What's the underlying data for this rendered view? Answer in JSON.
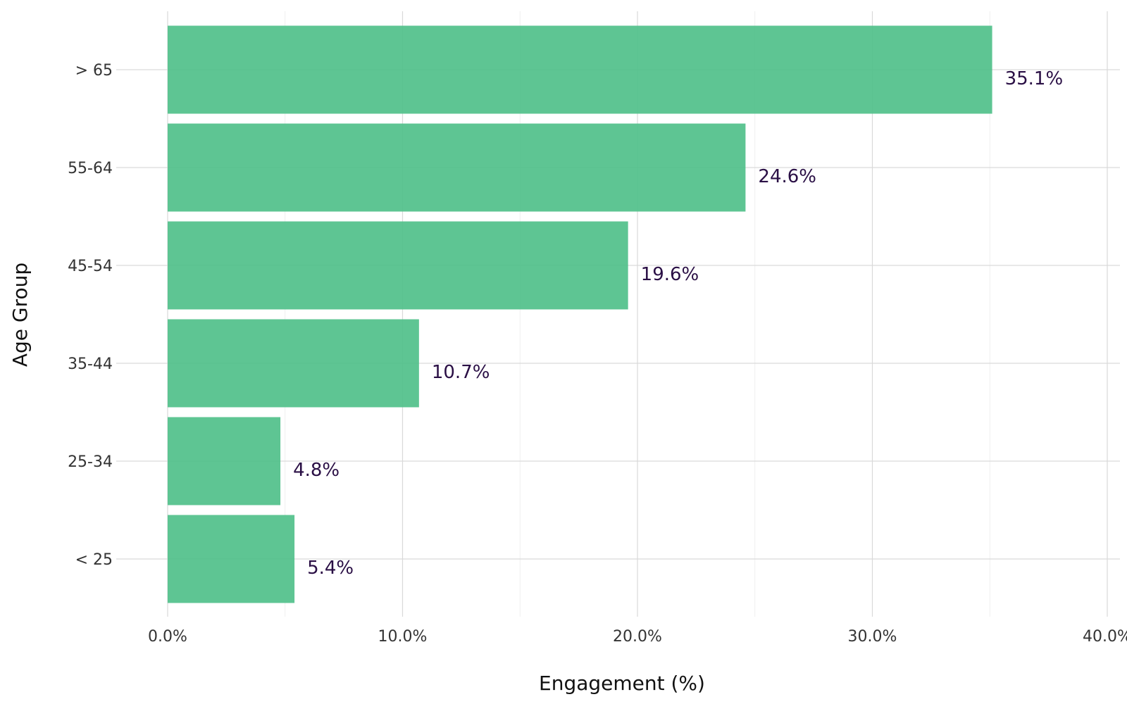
{
  "chart_data": {
    "type": "bar",
    "orientation": "horizontal",
    "categories": [
      "< 25",
      "25-34",
      "35-44",
      "45-54",
      "55-64",
      "> 65"
    ],
    "values": [
      5.4,
      4.8,
      10.7,
      19.6,
      24.6,
      35.1
    ],
    "data_labels": [
      "5.4%",
      "4.8%",
      "10.7%",
      "19.6%",
      "24.6%",
      "35.1%"
    ],
    "xlabel": "Engagement (%)",
    "ylabel": "Age Group",
    "xlim": [
      0,
      40
    ],
    "xticks": [
      0,
      10,
      20,
      30,
      40
    ],
    "xtick_labels": [
      "0.0%",
      "10.0%",
      "20.0%",
      "30.0%",
      "40.0%"
    ],
    "grid": true,
    "legend": "none",
    "bar_color": "#4dbf87",
    "label_color": "#2a0f45"
  }
}
